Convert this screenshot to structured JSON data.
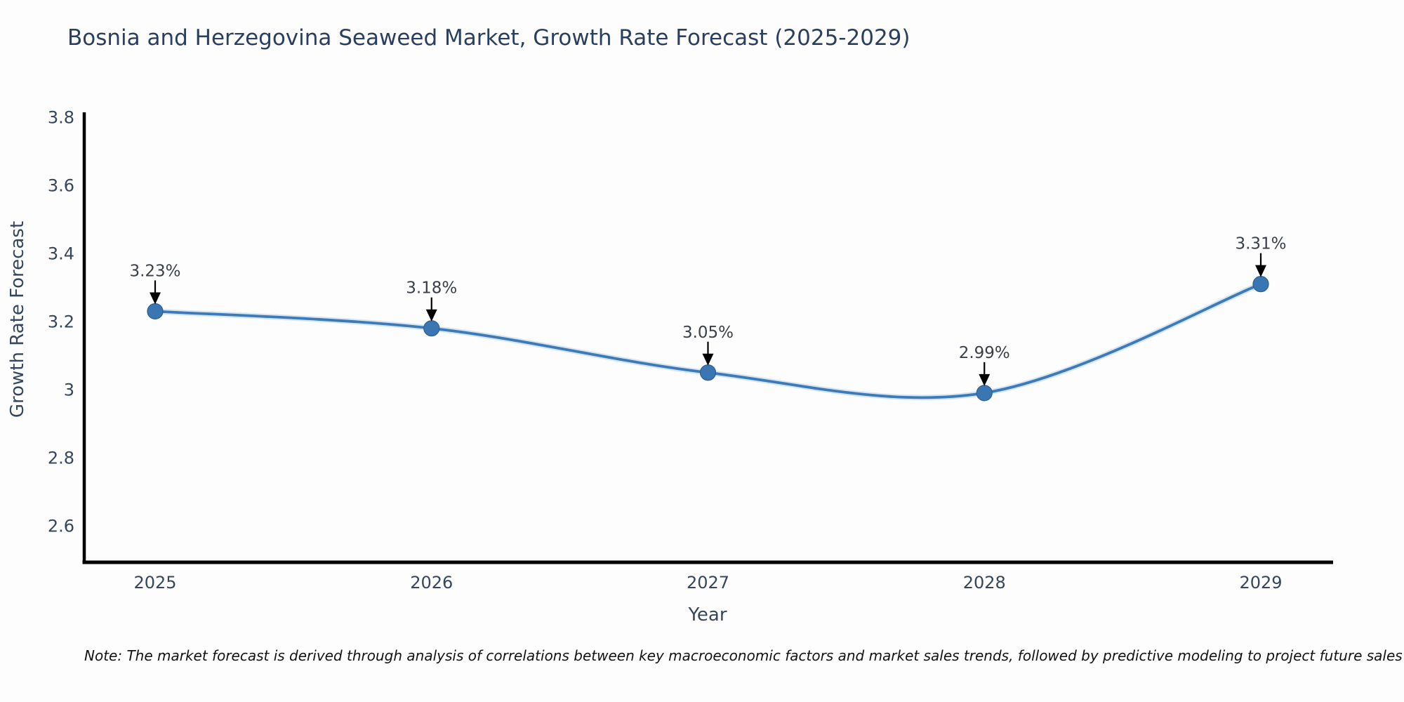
{
  "chart_data": {
    "type": "line",
    "line_shape": "spline",
    "title": "Bosnia and Herzegovina Seaweed Market, Growth Rate Forecast (2025-2029)",
    "xlabel": "Year",
    "ylabel": "Growth Rate Forecast",
    "x": [
      2025,
      2026,
      2027,
      2028,
      2029
    ],
    "values": [
      3.23,
      3.18,
      3.05,
      2.99,
      3.31
    ],
    "point_labels": [
      "3.23%",
      "3.18%",
      "3.05%",
      "2.99%",
      "3.31%"
    ],
    "x_tick_labels": [
      "2025",
      "2026",
      "2027",
      "2028",
      "2029"
    ],
    "y_tick_values": [
      3.8,
      3.6,
      3.4,
      3.2,
      3.0,
      2.8,
      2.6
    ],
    "y_tick_labels": [
      "3.8",
      "3.6",
      "3.4",
      "3.2",
      "3",
      "2.8",
      "2.6"
    ],
    "xlim": [
      2024.73,
      2029.26
    ],
    "ylim": [
      2.49,
      3.86
    ],
    "grid": false,
    "legend": "none",
    "annotations_arrow": "down",
    "colors": {
      "line": "#3d7ab8",
      "line_halo": "#b5d2ea",
      "marker": "#3a76b2",
      "marker_edge": "#2d5e92",
      "axis": "#000000",
      "tick_text": "#36465c",
      "title_text": "#2a3f5f",
      "annotation_text": "#3a4049",
      "arrow": "#000000",
      "background": "#fdfdfd"
    }
  },
  "note": {
    "text": "Note: The market forecast is derived through analysis of correlations between key macroeconomic factors and market sales trends, followed by predictive modeling to project future sales"
  }
}
